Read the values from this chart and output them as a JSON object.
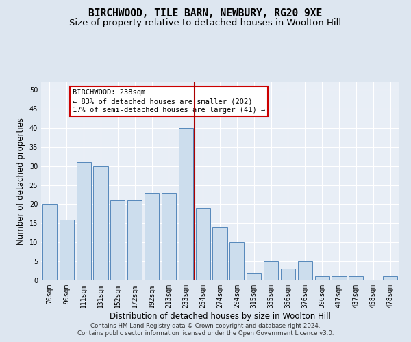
{
  "title1": "BIRCHWOOD, TILE BARN, NEWBURY, RG20 9XE",
  "title2": "Size of property relative to detached houses in Woolton Hill",
  "xlabel": "Distribution of detached houses by size in Woolton Hill",
  "ylabel": "Number of detached properties",
  "categories": [
    "70sqm",
    "90sqm",
    "111sqm",
    "131sqm",
    "152sqm",
    "172sqm",
    "192sqm",
    "213sqm",
    "233sqm",
    "254sqm",
    "274sqm",
    "294sqm",
    "315sqm",
    "335sqm",
    "356sqm",
    "376sqm",
    "396sqm",
    "417sqm",
    "437sqm",
    "458sqm",
    "478sqm"
  ],
  "values": [
    20,
    16,
    31,
    30,
    21,
    21,
    23,
    23,
    40,
    19,
    14,
    10,
    2,
    5,
    3,
    5,
    1,
    1,
    1,
    0,
    1
  ],
  "bar_color": "#ccdded",
  "bar_edge_color": "#5588bb",
  "vline_x_index": 8,
  "vline_color": "#aa0000",
  "annotation_title": "BIRCHWOOD: 238sqm",
  "annotation_line1": "← 83% of detached houses are smaller (202)",
  "annotation_line2": "17% of semi-detached houses are larger (41) →",
  "annotation_box_color": "#ffffff",
  "annotation_box_edge": "#cc0000",
  "ylim": [
    0,
    52
  ],
  "yticks": [
    0,
    5,
    10,
    15,
    20,
    25,
    30,
    35,
    40,
    45,
    50
  ],
  "bg_color": "#dde6f0",
  "plot_bg_color": "#e8eef6",
  "grid_color": "#ffffff",
  "footer1": "Contains HM Land Registry data © Crown copyright and database right 2024.",
  "footer2": "Contains public sector information licensed under the Open Government Licence v3.0.",
  "title1_fontsize": 10.5,
  "title2_fontsize": 9.5,
  "tick_fontsize": 7,
  "label_fontsize": 8.5,
  "footer_fontsize": 6.2
}
